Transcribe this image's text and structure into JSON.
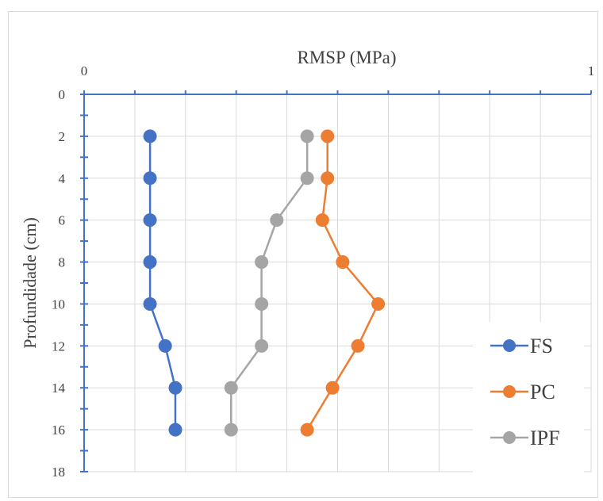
{
  "chart_data": {
    "type": "line",
    "title": "",
    "xlabel": "RMSP (MPa)",
    "ylabel": "Profundidade (cm)",
    "xlim": [
      0,
      1
    ],
    "ylim": [
      0,
      18
    ],
    "x_ticks": [
      "0",
      "1"
    ],
    "y_ticks": [
      "0",
      "2",
      "4",
      "6",
      "8",
      "10",
      "12",
      "14",
      "16",
      "18"
    ],
    "y_inverted": true,
    "x_axis_position": "top",
    "grid": true,
    "legend_position": "bottom-right",
    "series": [
      {
        "name": "FS",
        "color": "#4472C4",
        "points": [
          {
            "x": 0.13,
            "y": 2
          },
          {
            "x": 0.13,
            "y": 4
          },
          {
            "x": 0.13,
            "y": 6
          },
          {
            "x": 0.13,
            "y": 8
          },
          {
            "x": 0.13,
            "y": 10
          },
          {
            "x": 0.16,
            "y": 12
          },
          {
            "x": 0.18,
            "y": 14
          },
          {
            "x": 0.18,
            "y": 16
          }
        ]
      },
      {
        "name": "PC",
        "color": "#ED7D31",
        "points": [
          {
            "x": 0.48,
            "y": 2
          },
          {
            "x": 0.48,
            "y": 4
          },
          {
            "x": 0.47,
            "y": 6
          },
          {
            "x": 0.51,
            "y": 8
          },
          {
            "x": 0.58,
            "y": 10
          },
          {
            "x": 0.54,
            "y": 12
          },
          {
            "x": 0.49,
            "y": 14
          },
          {
            "x": 0.44,
            "y": 16
          }
        ]
      },
      {
        "name": "IPF",
        "color": "#A5A5A5",
        "points": [
          {
            "x": 0.44,
            "y": 2
          },
          {
            "x": 0.44,
            "y": 4
          },
          {
            "x": 0.38,
            "y": 6
          },
          {
            "x": 0.35,
            "y": 8
          },
          {
            "x": 0.35,
            "y": 10
          },
          {
            "x": 0.35,
            "y": 12
          },
          {
            "x": 0.29,
            "y": 14
          },
          {
            "x": 0.29,
            "y": 16
          }
        ]
      }
    ]
  }
}
